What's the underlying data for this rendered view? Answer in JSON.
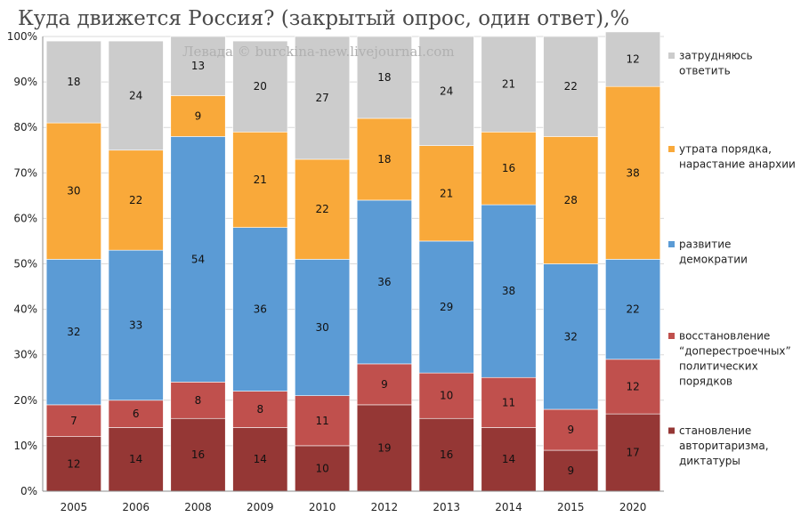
{
  "chart_data": {
    "type": "bar",
    "stacked": "percent",
    "title": "Куда движется Россия? (закрытый опрос, один ответ),%",
    "watermark": "Левада © burckina-new.livejournal.com",
    "categories": [
      "2005",
      "2006",
      "2008",
      "2009",
      "2010",
      "2012",
      "2013",
      "2014",
      "2015",
      "2020"
    ],
    "ylim": [
      0,
      100
    ],
    "ytick_labels": [
      "0%",
      "10%",
      "20%",
      "30%",
      "40%",
      "50%",
      "60%",
      "70%",
      "80%",
      "90%",
      "100%"
    ],
    "grid": true,
    "legend_position": "right",
    "series": [
      {
        "name": "становление авторитаризма, диктатуры",
        "legend_lines": [
          "становление",
          "авторитаризма,",
          "диктатуры"
        ],
        "color": "#953735",
        "values": [
          12,
          14,
          16,
          14,
          10,
          19,
          16,
          14,
          9,
          17
        ]
      },
      {
        "name": "восстановление “доперестроечных” политических порядков",
        "legend_lines": [
          "восстановление",
          "“доперестроечных”",
          "политических",
          "порядков"
        ],
        "color": "#c0504d",
        "values": [
          7,
          6,
          8,
          8,
          11,
          9,
          10,
          11,
          9,
          12
        ]
      },
      {
        "name": "развитие демократии",
        "legend_lines": [
          "развитие",
          "демократии"
        ],
        "color": "#5b9bd5",
        "values": [
          32,
          33,
          54,
          36,
          30,
          36,
          29,
          38,
          32,
          22
        ]
      },
      {
        "name": "утрата порядка, нарастание анархии",
        "legend_lines": [
          "утрата порядка,",
          "нарастание анархии"
        ],
        "color": "#f9a93a",
        "values": [
          30,
          22,
          9,
          21,
          22,
          18,
          21,
          16,
          28,
          38
        ]
      },
      {
        "name": "затрудняюсь ответить",
        "legend_lines": [
          "затрудняюсь",
          "ответить"
        ],
        "color": "#cccccc",
        "values": [
          18,
          24,
          13,
          20,
          27,
          18,
          24,
          21,
          22,
          12
        ]
      }
    ]
  }
}
